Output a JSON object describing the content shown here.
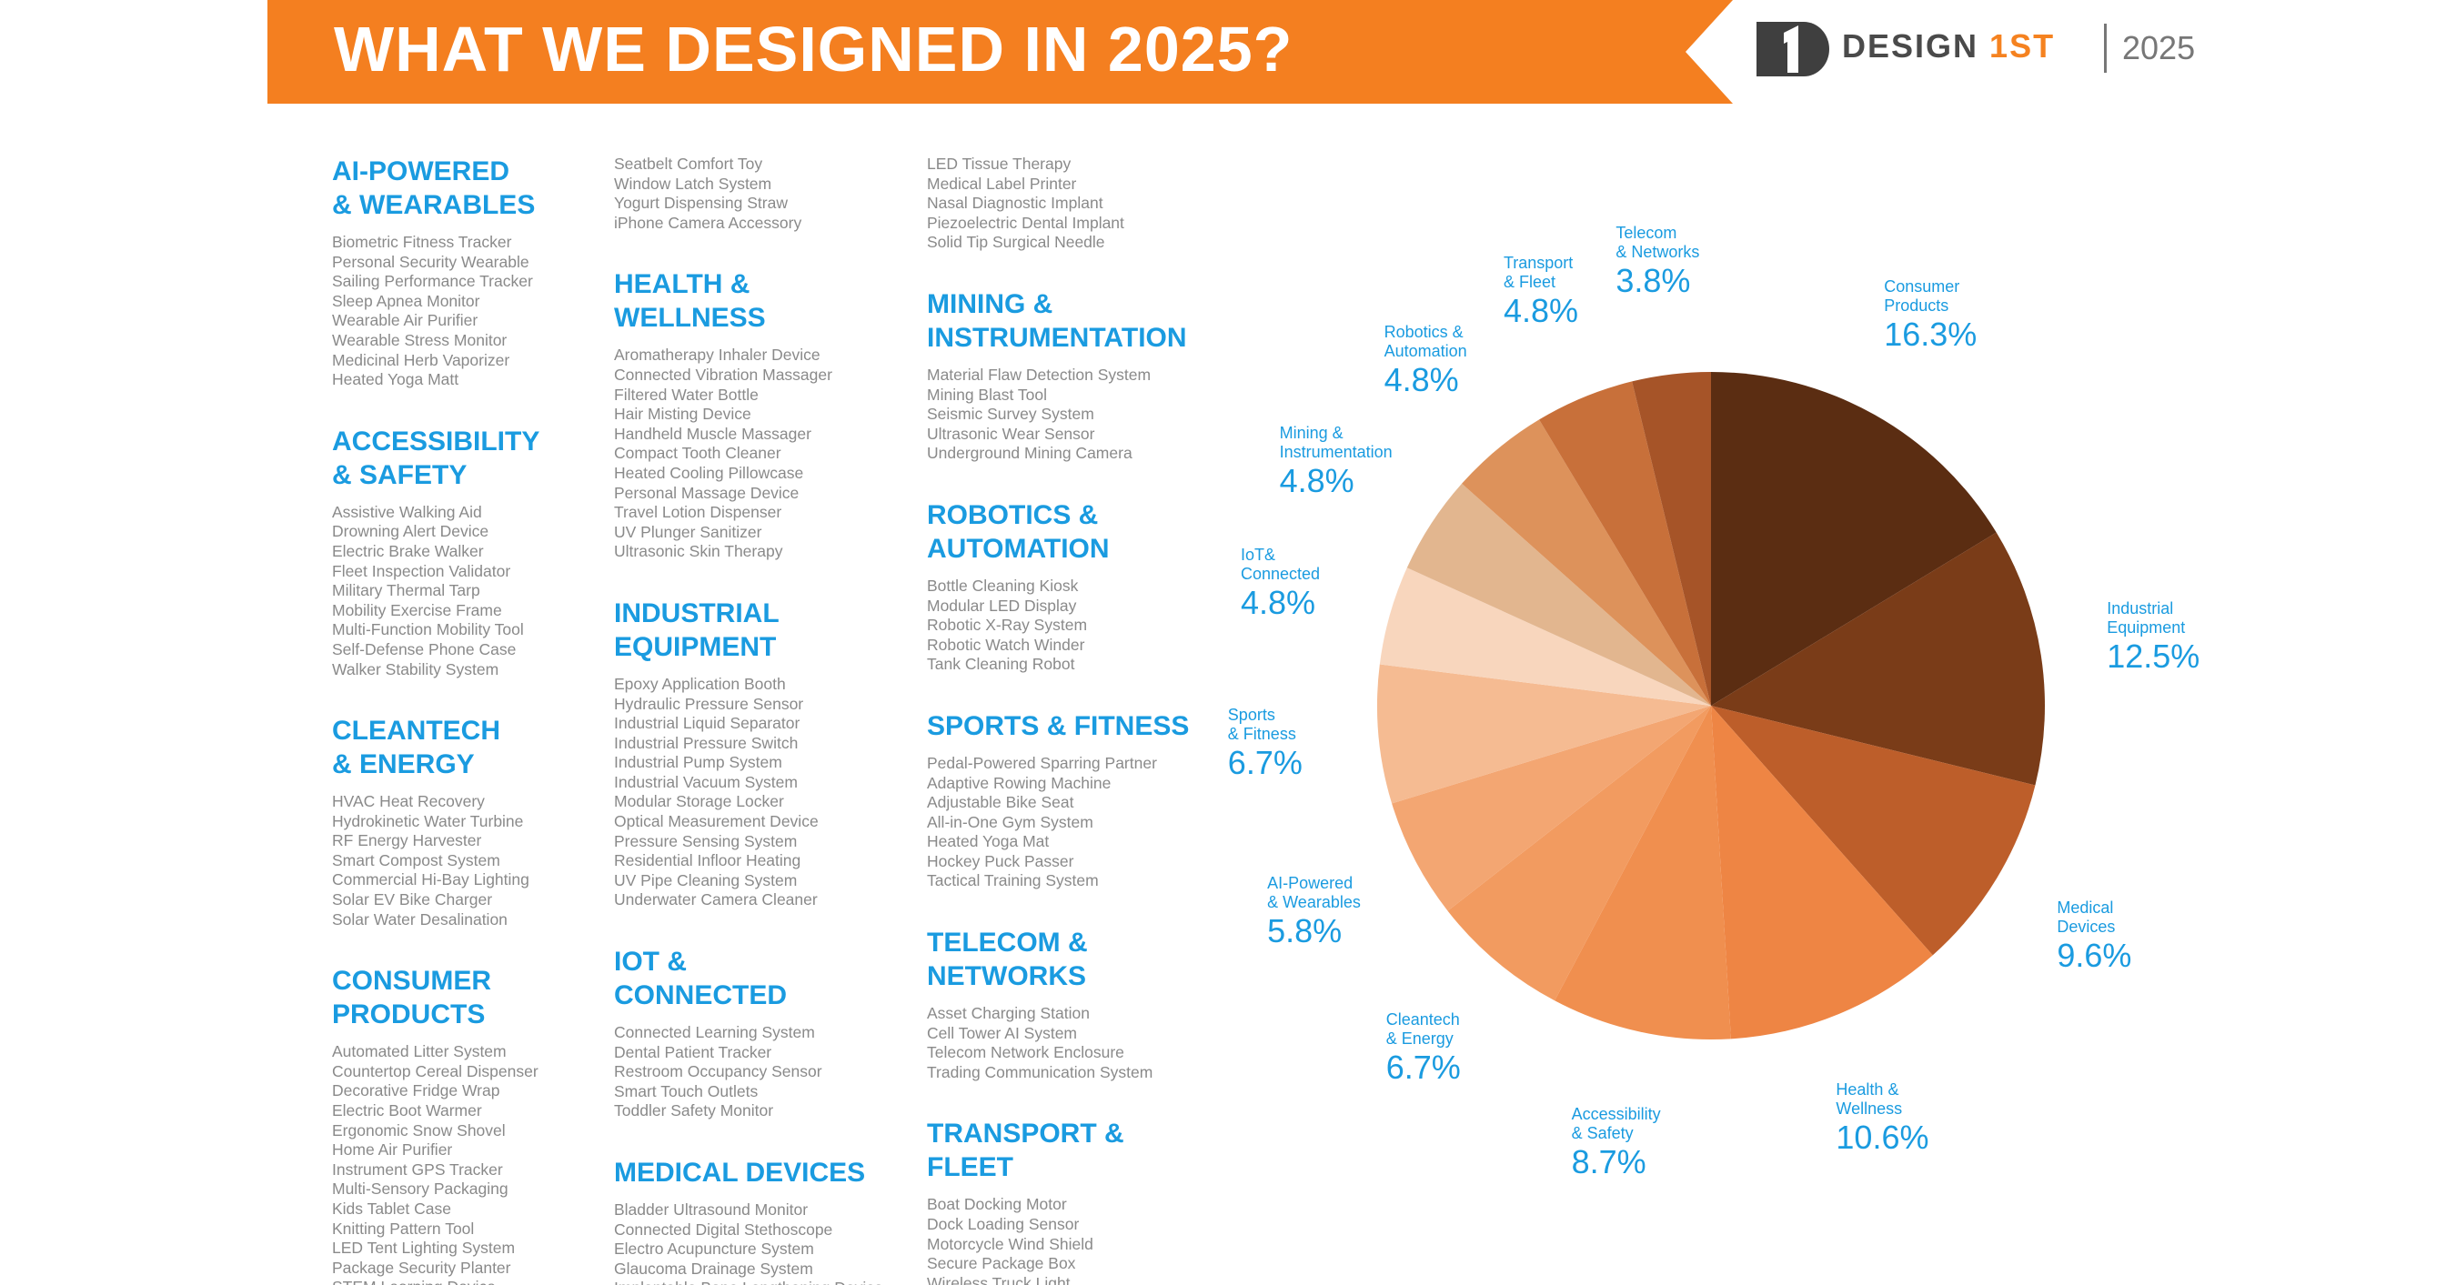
{
  "header": {
    "title": "WHAT WE DESIGNED IN 2025?",
    "brand": "DESIGN",
    "brand_highlight": "1ST",
    "year": "2025"
  },
  "columns": [
    {
      "blocks": [
        {
          "title": "AI-POWERED\n& WEARABLES",
          "items": [
            "Biometric Fitness Tracker",
            "Personal Security Wearable",
            "Sailing Performance Tracker",
            "Sleep Apnea Monitor",
            "Wearable Air Purifier",
            "Wearable Stress Monitor",
            "Medicinal Herb Vaporizer",
            "Heated Yoga Matt"
          ]
        },
        {
          "title": "ACCESSIBILITY\n& SAFETY",
          "items": [
            "Assistive Walking Aid",
            "Drowning Alert Device",
            "Electric Brake Walker",
            "Fleet Inspection Validator",
            "Military Thermal Tarp",
            "Mobility Exercise Frame",
            "Multi-Function Mobility Tool",
            "Self-Defense Phone Case",
            "Walker Stability System"
          ]
        },
        {
          "title": "CLEANTECH\n& ENERGY",
          "items": [
            "HVAC Heat Recovery",
            "Hydrokinetic Water Turbine",
            "RF Energy Harvester",
            "Smart Compost System",
            "Commercial Hi-Bay Lighting",
            "Solar EV Bike Charger",
            "Solar Water Desalination"
          ]
        },
        {
          "title": "CONSUMER\nPRODUCTS",
          "items": [
            "Automated Litter System",
            "Countertop Cereal Dispenser",
            "Decorative Fridge Wrap",
            "Electric Boot Warmer",
            "Ergonomic Snow Shovel",
            "Home Air Purifier",
            "Instrument GPS Tracker",
            "Multi-Sensory Packaging",
            "Kids Tablet Case",
            "Knitting Pattern Tool",
            "LED Tent Lighting System",
            "Package Security Planter",
            "STEM Learning Device"
          ]
        }
      ]
    },
    {
      "blocks": [
        {
          "items": [
            "Seatbelt Comfort Toy",
            "Window Latch System",
            "Yogurt Dispensing Straw",
            "iPhone Camera Accessory"
          ]
        },
        {
          "title": "HEALTH &\nWELLNESS",
          "items": [
            "Aromatherapy Inhaler Device",
            "Connected Vibration Massager",
            "Filtered Water Bottle",
            "Hair Misting Device",
            "Handheld Muscle Massager",
            "Compact Tooth Cleaner",
            "Heated Cooling Pillowcase",
            "Personal Massage Device",
            "Travel Lotion Dispenser",
            "UV Plunger Sanitizer",
            "Ultrasonic Skin Therapy"
          ]
        },
        {
          "title": "INDUSTRIAL\nEQUIPMENT",
          "items": [
            "Epoxy Application Booth",
            "Hydraulic Pressure Sensor",
            "Industrial Liquid Separator",
            "Industrial Pressure Switch",
            "Industrial Pump System",
            "Industrial Vacuum System",
            "Modular Storage Locker",
            "Optical Measurement Device",
            "Pressure Sensing System",
            "Residential Infloor Heating",
            "UV Pipe Cleaning System",
            "Underwater Camera Cleaner"
          ]
        },
        {
          "title": "IOT &\nCONNECTED",
          "items": [
            "Connected Learning System",
            "Dental Patient Tracker",
            "Restroom Occupancy Sensor",
            "Smart Touch Outlets",
            "Toddler Safety Monitor"
          ]
        },
        {
          "title": "MEDICAL DEVICES",
          "items": [
            "Bladder Ultrasound Monitor",
            "Connected Digital Stethoscope",
            "Electro Acupuncture System",
            "Glaucoma Drainage System",
            "Implantable Bone Lengthening Device"
          ]
        }
      ]
    },
    {
      "blocks": [
        {
          "items": [
            "LED Tissue Therapy",
            "Medical Label Printer",
            "Nasal Diagnostic Implant",
            "Piezoelectric Dental Implant",
            "Solid Tip Surgical Needle"
          ]
        },
        {
          "title": "MINING &\nINSTRUMENTATION",
          "items": [
            "Material Flaw Detection System",
            "Mining Blast Tool",
            "Seismic Survey System",
            "Ultrasonic Wear Sensor",
            "Underground Mining Camera"
          ]
        },
        {
          "title": "ROBOTICS &\nAUTOMATION",
          "items": [
            "Bottle Cleaning Kiosk",
            "Modular LED Display",
            "Robotic X-Ray System",
            "Robotic Watch Winder",
            "Tank Cleaning Robot"
          ]
        },
        {
          "title": "SPORTS & FITNESS",
          "items": [
            "Pedal-Powered Sparring Partner",
            "Adaptive Rowing Machine",
            "Adjustable Bike Seat",
            "All-in-One Gym System",
            "Heated Yoga Mat",
            "Hockey Puck Passer",
            "Tactical Training System"
          ]
        },
        {
          "title": "TELECOM &\nNETWORKS",
          "items": [
            "Asset Charging Station",
            "Cell Tower AI System",
            "Telecom Network Enclosure",
            "Trading Communication System"
          ]
        },
        {
          "title": "TRANSPORT &\nFLEET",
          "items": [
            "Boat Docking Motor",
            "Dock Loading Sensor",
            "Motorcycle Wind Shield",
            "Secure Package Box",
            "Wireless Truck Light"
          ]
        }
      ]
    }
  ],
  "chart_data": {
    "type": "pie",
    "categories": [
      "Consumer\nProducts",
      "Industrial\nEquipment",
      "Medical\nDevices",
      "Health &\nWellness",
      "Accessibility\n& Safety",
      "Cleantech\n& Energy",
      "AI-Powered\n& Wearables",
      "Sports\n& Fitness",
      "IoT&\nConnected",
      "Mining &\nInstrumentation",
      "Robotics &\nAutomation",
      "Transport\n& Fleet",
      "Telecom\n& Networks"
    ],
    "values": [
      16.3,
      12.5,
      9.6,
      10.6,
      8.7,
      6.7,
      5.8,
      6.7,
      4.8,
      4.8,
      4.8,
      4.8,
      3.8
    ],
    "value_labels": [
      "16.3%",
      "12.5%",
      "9.6%",
      "10.6%",
      "8.7%",
      "6.7%",
      "5.8%",
      "6.7%",
      "4.8%",
      "4.8%",
      "4.8%",
      "4.8%",
      "3.8%"
    ],
    "colors": [
      "#5b2d12",
      "#7a3c18",
      "#bd5e2a",
      "#ee8544",
      "#f08f4f",
      "#f29b60",
      "#f3a672",
      "#f5bb92",
      "#f8d6bd",
      "#e2b68f",
      "#dd925b",
      "#c8703a",
      "#a65428"
    ]
  }
}
